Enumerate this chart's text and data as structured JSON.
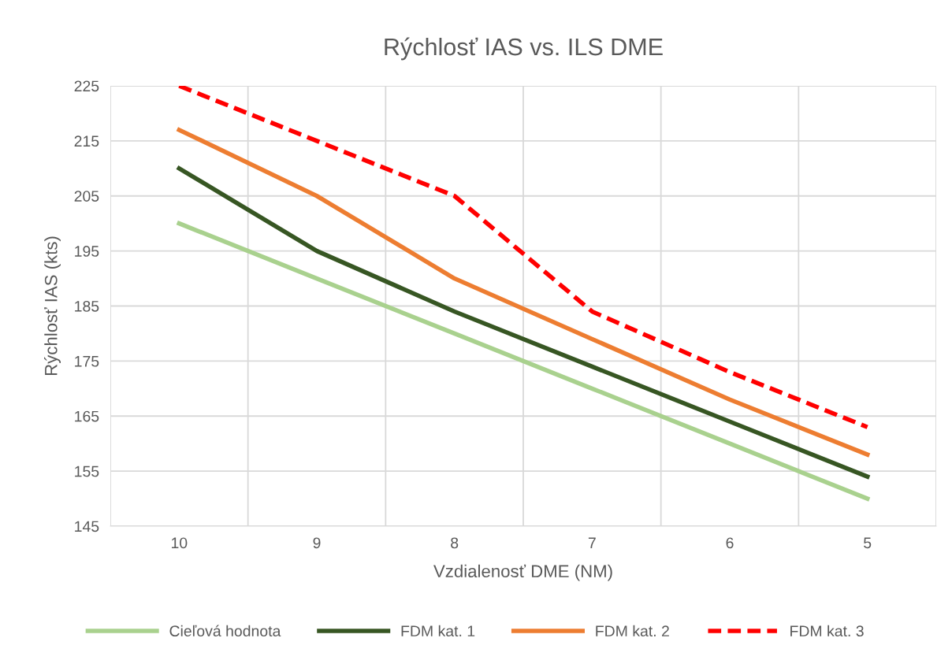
{
  "chart_data": {
    "type": "line",
    "title": "Rýchlosť IAS vs. ILS DME",
    "xlabel": "Vzdialenosť DME (NM)",
    "ylabel": "Rýchlosť IAS (kts)",
    "categories": [
      "10",
      "9",
      "8",
      "7",
      "6",
      "5"
    ],
    "series": [
      {
        "name": "Cieľová hodnota",
        "color": "#a9d18e",
        "values": [
          200,
          190,
          180,
          170,
          160,
          150
        ]
      },
      {
        "name": "FDM kat. 1",
        "color": "#375623",
        "values": [
          210,
          195,
          184,
          174,
          164,
          154
        ]
      },
      {
        "name": "FDM kat. 2",
        "color": "#ed7d31",
        "values": [
          217,
          205,
          190,
          179,
          168,
          158
        ]
      },
      {
        "name": "FDM kat. 3",
        "color": "#ff0000",
        "values": [
          225,
          215,
          205,
          184,
          173,
          163
        ],
        "line_style": "dashed"
      }
    ],
    "ylim": [
      145,
      225
    ],
    "yticks": [
      145,
      155,
      165,
      175,
      185,
      195,
      205,
      215,
      225
    ],
    "grid": true,
    "legend": "bottom",
    "marker": "none",
    "line_style": "solid"
  }
}
